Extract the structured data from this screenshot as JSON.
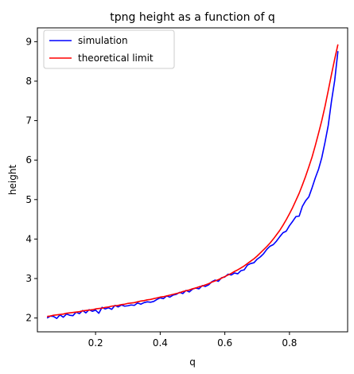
{
  "chart_data": {
    "type": "line",
    "title": "tpng height as a function of q",
    "xlabel": "q",
    "ylabel": "height",
    "xlim": [
      0.02,
      0.98
    ],
    "ylim": [
      1.65,
      9.35
    ],
    "xticks": [
      0.2,
      0.4,
      0.6,
      0.8
    ],
    "xtick_labels": [
      "0.2",
      "0.4",
      "0.6",
      "0.8"
    ],
    "yticks": [
      2,
      3,
      4,
      5,
      6,
      7,
      8,
      9
    ],
    "ytick_labels": [
      "2",
      "3",
      "4",
      "5",
      "6",
      "7",
      "8",
      "9"
    ],
    "grid": false,
    "legend_position": "top-left",
    "series": [
      {
        "name": "simulation",
        "color": "#0000ff",
        "x": [
          0.05,
          0.06,
          0.07,
          0.08,
          0.09,
          0.1,
          0.11,
          0.12,
          0.13,
          0.14,
          0.15,
          0.16,
          0.17,
          0.18,
          0.19,
          0.2,
          0.21,
          0.22,
          0.23,
          0.24,
          0.25,
          0.26,
          0.27,
          0.28,
          0.29,
          0.3,
          0.31,
          0.32,
          0.33,
          0.34,
          0.35,
          0.36,
          0.37,
          0.38,
          0.39,
          0.4,
          0.41,
          0.42,
          0.43,
          0.44,
          0.45,
          0.46,
          0.47,
          0.48,
          0.49,
          0.5,
          0.51,
          0.52,
          0.53,
          0.54,
          0.55,
          0.56,
          0.57,
          0.58,
          0.59,
          0.6,
          0.61,
          0.62,
          0.63,
          0.64,
          0.65,
          0.66,
          0.67,
          0.68,
          0.69,
          0.7,
          0.71,
          0.72,
          0.73,
          0.74,
          0.75,
          0.76,
          0.77,
          0.78,
          0.79,
          0.8,
          0.81,
          0.82,
          0.83,
          0.84,
          0.85,
          0.86,
          0.87,
          0.88,
          0.89,
          0.9,
          0.91,
          0.92,
          0.93,
          0.94,
          0.95
        ],
        "y": [
          2.0,
          2.05,
          2.04,
          1.99,
          2.08,
          2.02,
          2.1,
          2.07,
          2.06,
          2.15,
          2.11,
          2.19,
          2.13,
          2.21,
          2.17,
          2.2,
          2.12,
          2.27,
          2.23,
          2.26,
          2.22,
          2.32,
          2.28,
          2.33,
          2.3,
          2.31,
          2.33,
          2.32,
          2.38,
          2.35,
          2.39,
          2.41,
          2.4,
          2.42,
          2.47,
          2.51,
          2.49,
          2.56,
          2.53,
          2.58,
          2.6,
          2.65,
          2.62,
          2.7,
          2.66,
          2.73,
          2.76,
          2.74,
          2.82,
          2.8,
          2.84,
          2.92,
          2.96,
          2.93,
          3.02,
          3.04,
          3.11,
          3.09,
          3.14,
          3.12,
          3.2,
          3.22,
          3.34,
          3.38,
          3.4,
          3.49,
          3.55,
          3.63,
          3.74,
          3.82,
          3.86,
          3.95,
          4.06,
          4.16,
          4.2,
          4.34,
          4.45,
          4.57,
          4.58,
          4.83,
          4.97,
          5.07,
          5.3,
          5.55,
          5.77,
          6.06,
          6.45,
          6.88,
          7.49,
          8.02,
          8.76
        ]
      },
      {
        "name": "theoretical limit",
        "color": "#ff0000",
        "x": [
          0.05,
          0.06,
          0.07,
          0.08,
          0.09,
          0.1,
          0.11,
          0.12,
          0.13,
          0.14,
          0.15,
          0.16,
          0.17,
          0.18,
          0.19,
          0.2,
          0.21,
          0.22,
          0.23,
          0.24,
          0.25,
          0.26,
          0.27,
          0.28,
          0.29,
          0.3,
          0.31,
          0.32,
          0.33,
          0.34,
          0.35,
          0.36,
          0.37,
          0.38,
          0.39,
          0.4,
          0.41,
          0.42,
          0.43,
          0.44,
          0.45,
          0.46,
          0.47,
          0.48,
          0.49,
          0.5,
          0.51,
          0.52,
          0.53,
          0.54,
          0.55,
          0.56,
          0.57,
          0.58,
          0.59,
          0.6,
          0.61,
          0.62,
          0.63,
          0.64,
          0.65,
          0.66,
          0.67,
          0.68,
          0.69,
          0.7,
          0.71,
          0.72,
          0.73,
          0.74,
          0.75,
          0.76,
          0.77,
          0.78,
          0.79,
          0.8,
          0.81,
          0.82,
          0.83,
          0.84,
          0.85,
          0.86,
          0.87,
          0.88,
          0.89,
          0.9,
          0.91,
          0.92,
          0.93,
          0.94,
          0.95
        ],
        "y": [
          2.04,
          2.05,
          2.07,
          2.08,
          2.09,
          2.1,
          2.12,
          2.13,
          2.14,
          2.15,
          2.16,
          2.18,
          2.19,
          2.2,
          2.21,
          2.23,
          2.24,
          2.25,
          2.27,
          2.28,
          2.3,
          2.31,
          2.32,
          2.34,
          2.35,
          2.37,
          2.38,
          2.39,
          2.41,
          2.43,
          2.44,
          2.46,
          2.47,
          2.49,
          2.51,
          2.53,
          2.54,
          2.56,
          2.58,
          2.6,
          2.62,
          2.64,
          2.67,
          2.69,
          2.71,
          2.74,
          2.76,
          2.79,
          2.81,
          2.84,
          2.87,
          2.91,
          2.94,
          2.97,
          3.01,
          3.05,
          3.09,
          3.13,
          3.18,
          3.22,
          3.27,
          3.32,
          3.38,
          3.44,
          3.5,
          3.57,
          3.65,
          3.73,
          3.81,
          3.9,
          4.0,
          4.11,
          4.22,
          4.35,
          4.49,
          4.64,
          4.8,
          4.98,
          5.16,
          5.37,
          5.59,
          5.83,
          6.08,
          6.37,
          6.68,
          7.0,
          7.36,
          7.76,
          8.17,
          8.56,
          8.93
        ]
      }
    ]
  }
}
